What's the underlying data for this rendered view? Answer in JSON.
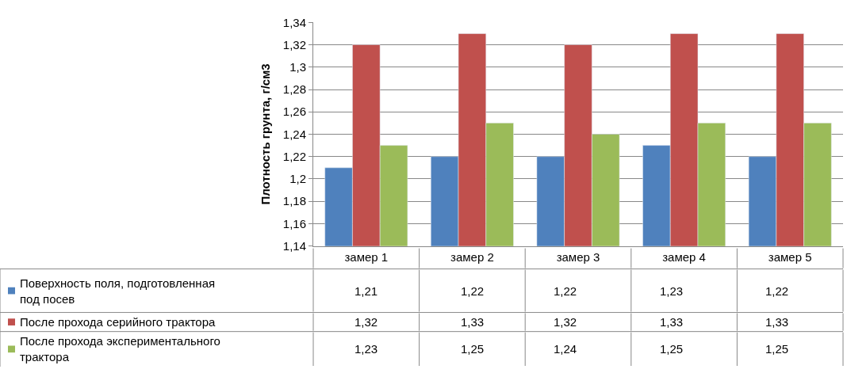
{
  "chart_data": {
    "type": "bar",
    "ylabel": "Плотность грунта, г/см3",
    "categories": [
      "замер 1",
      "замер 2",
      "замер 3",
      "замер 4",
      "замер 5"
    ],
    "series": [
      {
        "name": "Поверхность поля, подготовленная под посев",
        "color": "#4f81bd",
        "values": [
          1.21,
          1.22,
          1.22,
          1.23,
          1.22
        ],
        "value_labels": [
          "1,21",
          "1,22",
          "1,22",
          "1,23",
          "1,22"
        ]
      },
      {
        "name": "После прохода серийного трактора",
        "color": "#c0504d",
        "values": [
          1.32,
          1.33,
          1.32,
          1.33,
          1.33
        ],
        "value_labels": [
          "1,32",
          "1,33",
          "1,32",
          "1,33",
          "1,33"
        ]
      },
      {
        "name": "После прохода экспериментального трактора",
        "color": "#9bbb59",
        "values": [
          1.23,
          1.25,
          1.24,
          1.25,
          1.25
        ],
        "value_labels": [
          "1,23",
          "1,25",
          "1,24",
          "1,25",
          "1,25"
        ]
      }
    ],
    "ylim": [
      1.14,
      1.34
    ],
    "yticks": [
      {
        "value": 1.14,
        "label": "1,14"
      },
      {
        "value": 1.16,
        "label": "1,16"
      },
      {
        "value": 1.18,
        "label": "1,18"
      },
      {
        "value": 1.2,
        "label": "1,2"
      },
      {
        "value": 1.22,
        "label": "1,22"
      },
      {
        "value": 1.24,
        "label": "1,24"
      },
      {
        "value": 1.26,
        "label": "1,26"
      },
      {
        "value": 1.28,
        "label": "1,28"
      },
      {
        "value": 1.3,
        "label": "1,3"
      },
      {
        "value": 1.32,
        "label": "1,32"
      },
      {
        "value": 1.34,
        "label": "1,34"
      }
    ],
    "grid": "y",
    "legend": "bottom"
  }
}
